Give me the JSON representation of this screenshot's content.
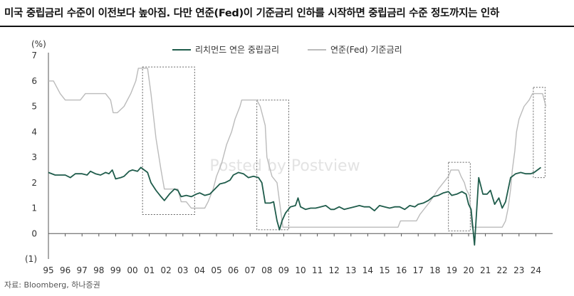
{
  "title": "미국 중립금리 수준이 이전보다 높아짐. 다만 연준(Fed)이 기준금리 인하를 시작하면 중립금리 수준 정도까지는 인하",
  "source": "자료: Bloomberg, 하나증권",
  "watermark": "Posted by Postview",
  "chart_data": {
    "type": "line",
    "unit": "(%)",
    "ylim": [
      -1,
      7
    ],
    "yticks": [
      "7",
      "6",
      "5",
      "4",
      "3",
      "2",
      "1",
      "0",
      "(1)"
    ],
    "ytick_values": [
      7,
      6,
      5,
      4,
      3,
      2,
      1,
      0,
      -1
    ],
    "xlim": [
      1995,
      2025
    ],
    "xticks": [
      "95",
      "96",
      "97",
      "98",
      "99",
      "00",
      "01",
      "02",
      "03",
      "04",
      "05",
      "06",
      "07",
      "08",
      "09",
      "10",
      "11",
      "12",
      "13",
      "14",
      "15",
      "16",
      "17",
      "18",
      "19",
      "20",
      "21",
      "22",
      "23",
      "24"
    ],
    "xtick_values": [
      1995,
      1996,
      1997,
      1998,
      1999,
      2000,
      2001,
      2002,
      2003,
      2004,
      2005,
      2006,
      2007,
      2008,
      2009,
      2010,
      2011,
      2012,
      2013,
      2014,
      2015,
      2016,
      2017,
      2018,
      2019,
      2020,
      2021,
      2022,
      2023,
      2024
    ],
    "legend_position": "top",
    "series": [
      {
        "name": "리치먼드 연은 중립금리",
        "color": "#1f5c4b",
        "points": [
          [
            1995.0,
            2.4
          ],
          [
            1995.4,
            2.3
          ],
          [
            1996.0,
            2.3
          ],
          [
            1996.3,
            2.2
          ],
          [
            1996.6,
            2.35
          ],
          [
            1997.0,
            2.35
          ],
          [
            1997.3,
            2.3
          ],
          [
            1997.5,
            2.45
          ],
          [
            1997.8,
            2.35
          ],
          [
            1998.1,
            2.3
          ],
          [
            1998.4,
            2.4
          ],
          [
            1998.6,
            2.35
          ],
          [
            1998.8,
            2.5
          ],
          [
            1999.0,
            2.15
          ],
          [
            1999.3,
            2.2
          ],
          [
            1999.5,
            2.25
          ],
          [
            1999.8,
            2.45
          ],
          [
            2000.0,
            2.5
          ],
          [
            2000.3,
            2.45
          ],
          [
            2000.5,
            2.6
          ],
          [
            2000.7,
            2.5
          ],
          [
            2000.9,
            2.4
          ],
          [
            2001.1,
            2.0
          ],
          [
            2001.4,
            1.7
          ],
          [
            2001.7,
            1.45
          ],
          [
            2001.9,
            1.3
          ],
          [
            2002.2,
            1.55
          ],
          [
            2002.5,
            1.75
          ],
          [
            2002.7,
            1.7
          ],
          [
            2002.9,
            1.45
          ],
          [
            2003.2,
            1.5
          ],
          [
            2003.5,
            1.45
          ],
          [
            2003.8,
            1.55
          ],
          [
            2004.0,
            1.6
          ],
          [
            2004.3,
            1.5
          ],
          [
            2004.6,
            1.55
          ],
          [
            2004.9,
            1.75
          ],
          [
            2005.2,
            1.95
          ],
          [
            2005.5,
            2.0
          ],
          [
            2005.8,
            2.1
          ],
          [
            2006.0,
            2.3
          ],
          [
            2006.3,
            2.4
          ],
          [
            2006.6,
            2.35
          ],
          [
            2006.9,
            2.2
          ],
          [
            2007.2,
            2.25
          ],
          [
            2007.5,
            2.2
          ],
          [
            2007.7,
            2.0
          ],
          [
            2007.9,
            1.2
          ],
          [
            2008.2,
            1.2
          ],
          [
            2008.4,
            1.25
          ],
          [
            2008.6,
            0.5
          ],
          [
            2008.75,
            0.15
          ],
          [
            2008.9,
            0.5
          ],
          [
            2009.1,
            0.8
          ],
          [
            2009.4,
            1.05
          ],
          [
            2009.7,
            1.1
          ],
          [
            2009.85,
            1.4
          ],
          [
            2010.0,
            1.05
          ],
          [
            2010.3,
            0.95
          ],
          [
            2010.6,
            1.0
          ],
          [
            2010.9,
            1.0
          ],
          [
            2011.2,
            1.05
          ],
          [
            2011.5,
            1.1
          ],
          [
            2011.8,
            0.95
          ],
          [
            2012.0,
            0.95
          ],
          [
            2012.3,
            1.05
          ],
          [
            2012.6,
            0.95
          ],
          [
            2012.9,
            1.0
          ],
          [
            2013.2,
            1.05
          ],
          [
            2013.5,
            1.1
          ],
          [
            2013.8,
            1.05
          ],
          [
            2014.1,
            1.05
          ],
          [
            2014.4,
            0.9
          ],
          [
            2014.7,
            1.1
          ],
          [
            2015.0,
            1.05
          ],
          [
            2015.3,
            1.0
          ],
          [
            2015.6,
            1.05
          ],
          [
            2015.9,
            1.05
          ],
          [
            2016.2,
            0.95
          ],
          [
            2016.5,
            1.1
          ],
          [
            2016.8,
            1.05
          ],
          [
            2017.0,
            1.15
          ],
          [
            2017.3,
            1.2
          ],
          [
            2017.6,
            1.3
          ],
          [
            2017.9,
            1.45
          ],
          [
            2018.2,
            1.5
          ],
          [
            2018.5,
            1.6
          ],
          [
            2018.8,
            1.65
          ],
          [
            2019.0,
            1.5
          ],
          [
            2019.3,
            1.55
          ],
          [
            2019.6,
            1.65
          ],
          [
            2019.85,
            1.55
          ],
          [
            2020.0,
            1.15
          ],
          [
            2020.15,
            0.95
          ],
          [
            2020.35,
            -0.45
          ],
          [
            2020.6,
            2.2
          ],
          [
            2020.85,
            1.55
          ],
          [
            2021.1,
            1.55
          ],
          [
            2021.3,
            1.7
          ],
          [
            2021.55,
            1.15
          ],
          [
            2021.8,
            1.4
          ],
          [
            2022.0,
            1.0
          ],
          [
            2022.2,
            1.25
          ],
          [
            2022.5,
            2.2
          ],
          [
            2022.8,
            2.35
          ],
          [
            2023.1,
            2.4
          ],
          [
            2023.4,
            2.35
          ],
          [
            2023.7,
            2.35
          ],
          [
            2023.9,
            2.4
          ],
          [
            2024.2,
            2.55
          ],
          [
            2024.3,
            2.6
          ]
        ]
      },
      {
        "name": "연준(Fed) 기준금리",
        "color": "#bbbbbb",
        "points": [
          [
            1995.0,
            6.0
          ],
          [
            1995.3,
            6.0
          ],
          [
            1995.7,
            5.5
          ],
          [
            1996.0,
            5.25
          ],
          [
            1996.5,
            5.25
          ],
          [
            1996.9,
            5.25
          ],
          [
            1997.2,
            5.5
          ],
          [
            1997.6,
            5.5
          ],
          [
            1998.0,
            5.5
          ],
          [
            1998.4,
            5.5
          ],
          [
            1998.7,
            5.25
          ],
          [
            1998.85,
            4.75
          ],
          [
            1999.1,
            4.75
          ],
          [
            1999.5,
            5.0
          ],
          [
            1999.9,
            5.5
          ],
          [
            2000.2,
            6.0
          ],
          [
            2000.35,
            6.5
          ],
          [
            2000.9,
            6.5
          ],
          [
            2001.1,
            5.5
          ],
          [
            2001.4,
            3.75
          ],
          [
            2001.7,
            2.5
          ],
          [
            2001.9,
            1.75
          ],
          [
            2002.3,
            1.75
          ],
          [
            2002.7,
            1.75
          ],
          [
            2002.9,
            1.25
          ],
          [
            2003.2,
            1.25
          ],
          [
            2003.5,
            1.0
          ],
          [
            2003.8,
            1.0
          ],
          [
            2004.3,
            1.0
          ],
          [
            2004.5,
            1.25
          ],
          [
            2004.8,
            1.75
          ],
          [
            2005.0,
            2.25
          ],
          [
            2005.3,
            2.75
          ],
          [
            2005.6,
            3.5
          ],
          [
            2005.9,
            4.0
          ],
          [
            2006.1,
            4.5
          ],
          [
            2006.4,
            5.0
          ],
          [
            2006.5,
            5.25
          ],
          [
            2006.9,
            5.25
          ],
          [
            2007.4,
            5.25
          ],
          [
            2007.6,
            5.0
          ],
          [
            2007.9,
            4.25
          ],
          [
            2008.0,
            3.0
          ],
          [
            2008.3,
            2.25
          ],
          [
            2008.6,
            2.0
          ],
          [
            2008.8,
            1.0
          ],
          [
            2008.95,
            0.25
          ],
          [
            2009.5,
            0.25
          ],
          [
            2010.5,
            0.25
          ],
          [
            2011.5,
            0.25
          ],
          [
            2012.5,
            0.25
          ],
          [
            2013.5,
            0.25
          ],
          [
            2014.5,
            0.25
          ],
          [
            2015.8,
            0.25
          ],
          [
            2015.95,
            0.5
          ],
          [
            2016.9,
            0.5
          ],
          [
            2017.1,
            0.75
          ],
          [
            2017.4,
            1.0
          ],
          [
            2017.7,
            1.25
          ],
          [
            2017.95,
            1.5
          ],
          [
            2018.2,
            1.75
          ],
          [
            2018.5,
            2.0
          ],
          [
            2018.8,
            2.25
          ],
          [
            2018.95,
            2.5
          ],
          [
            2019.4,
            2.5
          ],
          [
            2019.55,
            2.25
          ],
          [
            2019.75,
            2.0
          ],
          [
            2019.85,
            1.75
          ],
          [
            2020.05,
            1.5
          ],
          [
            2020.2,
            0.25
          ],
          [
            2021.0,
            0.25
          ],
          [
            2021.5,
            0.25
          ],
          [
            2022.0,
            0.25
          ],
          [
            2022.2,
            0.5
          ],
          [
            2022.35,
            1.0
          ],
          [
            2022.5,
            1.75
          ],
          [
            2022.6,
            2.5
          ],
          [
            2022.75,
            3.25
          ],
          [
            2022.85,
            4.0
          ],
          [
            2023.0,
            4.5
          ],
          [
            2023.3,
            5.0
          ],
          [
            2023.6,
            5.25
          ],
          [
            2023.8,
            5.5
          ],
          [
            2024.0,
            5.5
          ],
          [
            2024.4,
            5.5
          ],
          [
            2024.6,
            5.0
          ]
        ]
      }
    ],
    "highlight_boxes": [
      {
        "x0": 2000.6,
        "x1": 2003.7,
        "y0": 0.75,
        "y1": 6.55
      },
      {
        "x0": 2007.4,
        "x1": 2009.3,
        "y0": 0.15,
        "y1": 5.25
      },
      {
        "x0": 2018.8,
        "x1": 2020.1,
        "y0": 0.1,
        "y1": 2.8
      },
      {
        "x0": 2023.85,
        "x1": 2024.55,
        "y0": 2.2,
        "y1": 5.75
      }
    ]
  }
}
